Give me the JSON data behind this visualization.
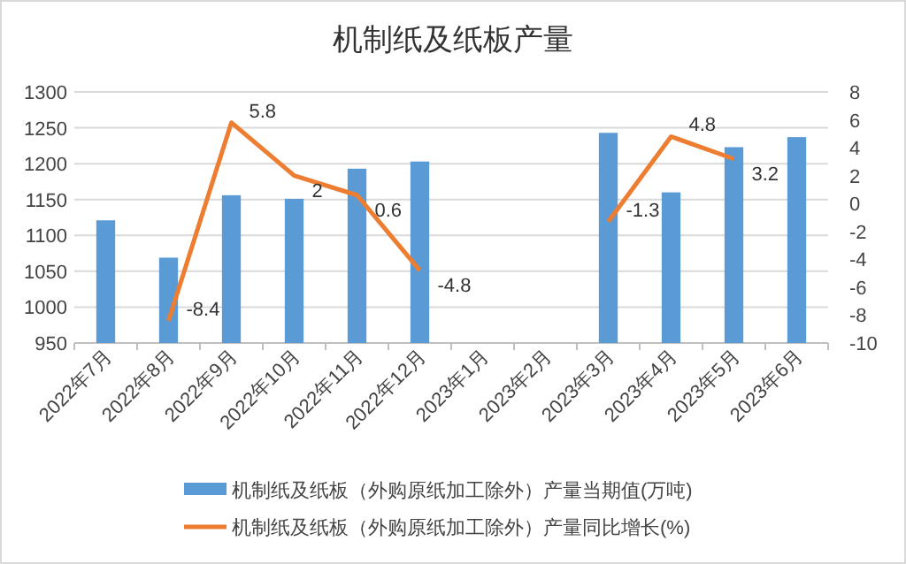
{
  "chart_data": {
    "type": "bar",
    "title": "机制纸及纸板产量",
    "categories": [
      "2022年7月",
      "2022年8月",
      "2022年9月",
      "2022年10月",
      "2022年11月",
      "2022年12月",
      "2023年1月",
      "2023年2月",
      "2023年3月",
      "2023年4月",
      "2023年5月",
      "2023年6月"
    ],
    "series": [
      {
        "name": "机制纸及纸板（外购原纸加工除外）产量当期值(万吨)",
        "color": "#5b9bd5",
        "values": [
          1121,
          1069,
          1156,
          1151,
          1193,
          1203,
          null,
          null,
          1243,
          1160,
          1223,
          1237
        ]
      },
      {
        "name": "机制纸及纸板（外购原纸加工除外）产量同比增长(%)",
        "type": "line",
        "axis": "y2",
        "color": "#ed7d31",
        "data_labels": true,
        "values": [
          null,
          -8.4,
          5.8,
          2,
          0.6,
          -4.8,
          null,
          null,
          -1.3,
          4.8,
          3.2,
          null
        ]
      }
    ],
    "ylim": [
      950,
      1300
    ],
    "yticks": [
      950,
      1000,
      1050,
      1100,
      1150,
      1200,
      1250,
      1300
    ],
    "y2lim": [
      -10,
      8
    ],
    "y2ticks": [
      -10,
      -8,
      -6,
      -4,
      -2,
      0,
      2,
      4,
      6,
      8
    ],
    "grid": "y",
    "legend": "bottom",
    "marker": "none"
  }
}
